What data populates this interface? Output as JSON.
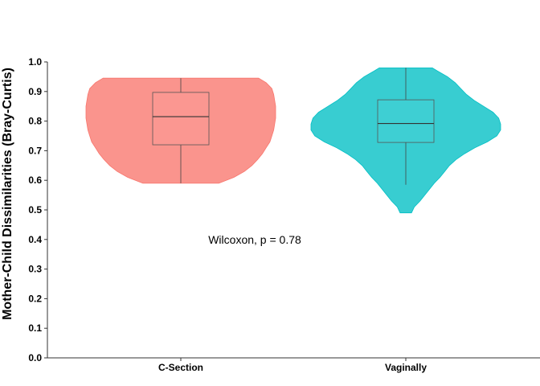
{
  "chart_data": {
    "type": "violin",
    "title": "",
    "xlabel": "",
    "ylabel": "Mother-Child Dissimilarities (Bray-Curtis)",
    "ylim": [
      0,
      1
    ],
    "yticks": [
      0.0,
      0.1,
      0.2,
      0.3,
      0.4,
      0.5,
      0.6,
      0.7,
      0.8,
      0.9,
      1.0
    ],
    "ytick_labels": [
      "0.0",
      "0.1",
      "0.2",
      "0.3",
      "0.4",
      "0.5",
      "0.6",
      "0.7",
      "0.8",
      "0.9",
      "1.0"
    ],
    "categories": [
      "C-Section",
      "Vaginally"
    ],
    "grid": false,
    "legend": "none",
    "annotation": "Wilcoxon, p = 0.78",
    "annotation_y": 0.395,
    "groups": [
      {
        "name": "C-Section",
        "color": "#F8766D",
        "min": 0.59,
        "q1": 0.72,
        "median": 0.815,
        "q3": 0.897,
        "max": 0.945,
        "density": [
          [
            0.59,
            0.4
          ],
          [
            0.61,
            0.56
          ],
          [
            0.63,
            0.67
          ],
          [
            0.65,
            0.75
          ],
          [
            0.67,
            0.81
          ],
          [
            0.69,
            0.86
          ],
          [
            0.71,
            0.9
          ],
          [
            0.73,
            0.94
          ],
          [
            0.75,
            0.96
          ],
          [
            0.77,
            0.98
          ],
          [
            0.79,
            0.99
          ],
          [
            0.81,
            1.0
          ],
          [
            0.83,
            1.0
          ],
          [
            0.85,
            1.0
          ],
          [
            0.87,
            0.99
          ],
          [
            0.89,
            0.98
          ],
          [
            0.91,
            0.96
          ],
          [
            0.93,
            0.9
          ],
          [
            0.945,
            0.82
          ]
        ]
      },
      {
        "name": "Vaginally",
        "color": "#00BFC4",
        "min": 0.585,
        "q1": 0.728,
        "median": 0.792,
        "q3": 0.872,
        "max": 0.98,
        "density": [
          [
            0.49,
            0.06
          ],
          [
            0.51,
            0.09
          ],
          [
            0.53,
            0.15
          ],
          [
            0.55,
            0.2
          ],
          [
            0.57,
            0.25
          ],
          [
            0.59,
            0.3
          ],
          [
            0.61,
            0.36
          ],
          [
            0.63,
            0.41
          ],
          [
            0.65,
            0.46
          ],
          [
            0.67,
            0.53
          ],
          [
            0.69,
            0.62
          ],
          [
            0.71,
            0.73
          ],
          [
            0.73,
            0.86
          ],
          [
            0.75,
            0.96
          ],
          [
            0.77,
            1.0
          ],
          [
            0.79,
            1.0
          ],
          [
            0.81,
            0.98
          ],
          [
            0.83,
            0.92
          ],
          [
            0.85,
            0.82
          ],
          [
            0.87,
            0.72
          ],
          [
            0.89,
            0.64
          ],
          [
            0.91,
            0.58
          ],
          [
            0.93,
            0.52
          ],
          [
            0.95,
            0.44
          ],
          [
            0.97,
            0.33
          ],
          [
            0.98,
            0.28
          ]
        ]
      }
    ]
  }
}
